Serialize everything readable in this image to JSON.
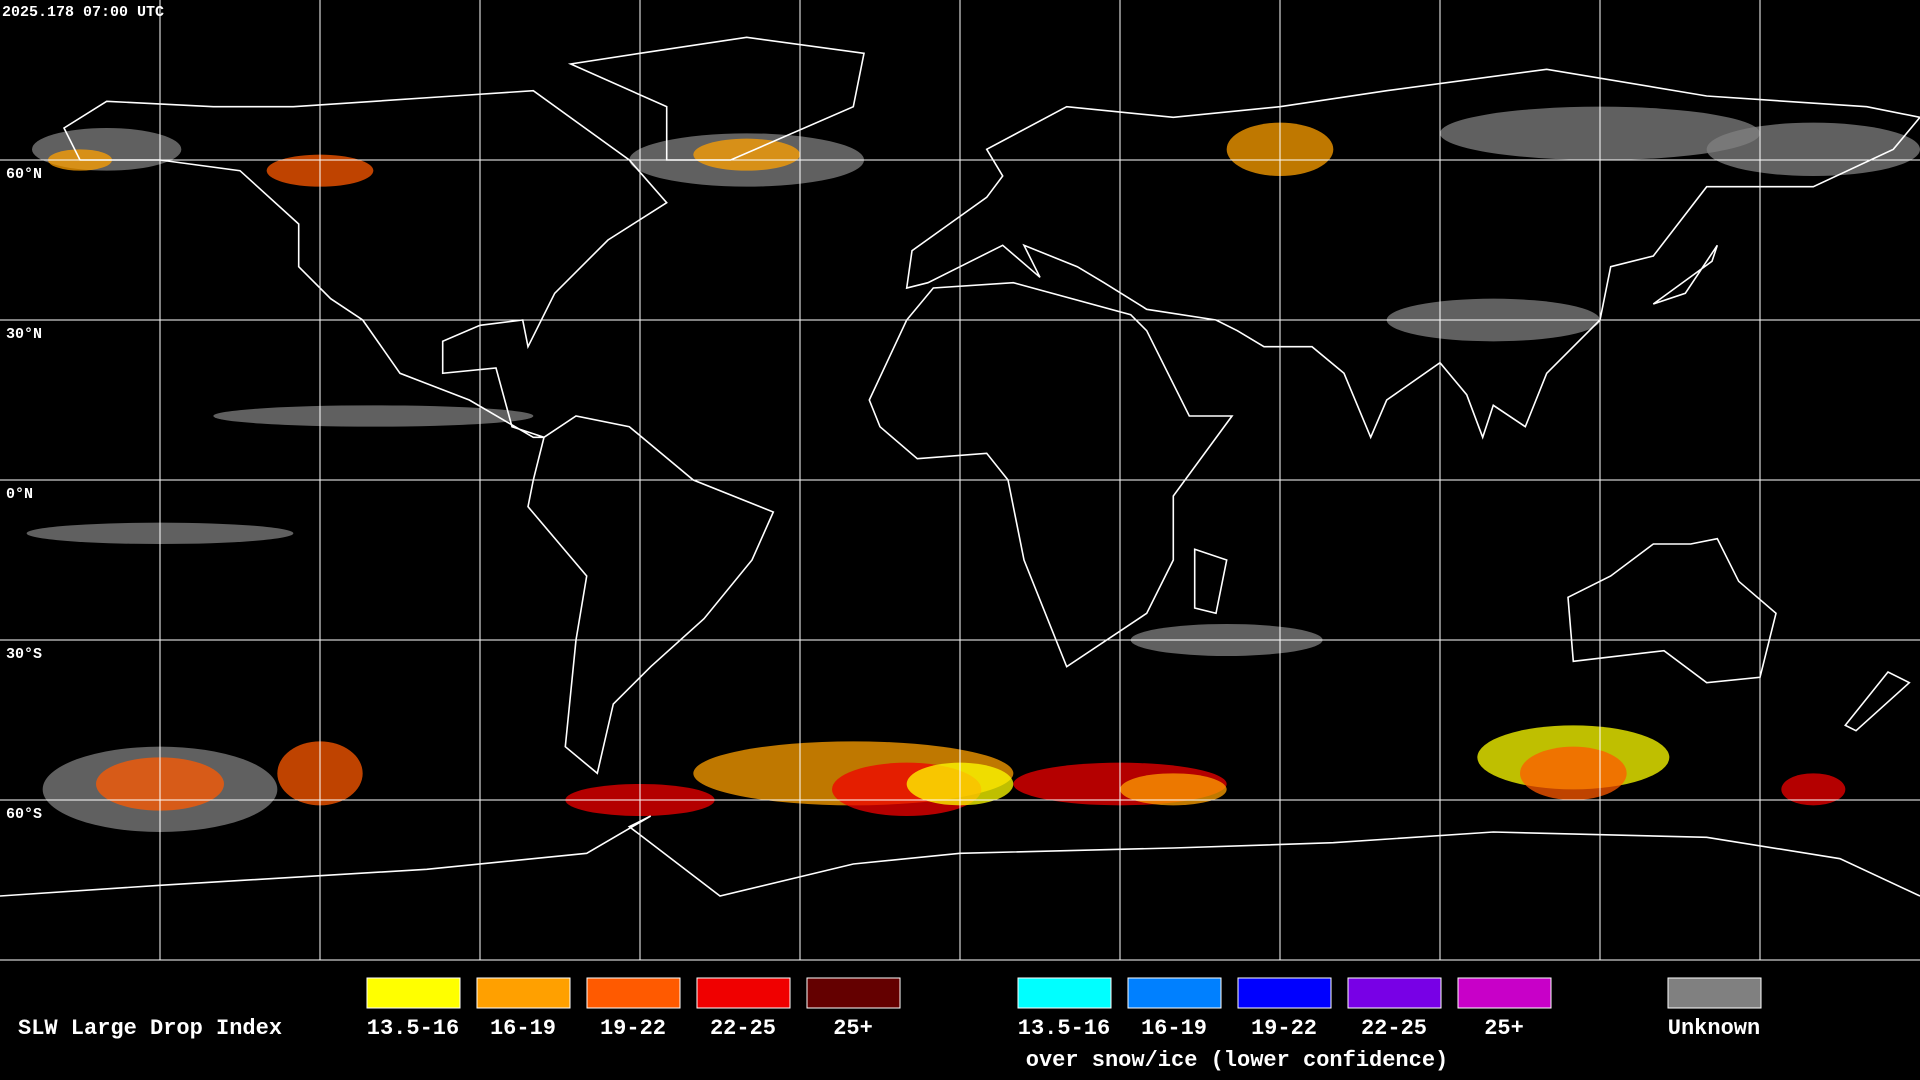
{
  "timestamp": "2025.178 07:00 UTC",
  "latitude_labels": [
    "60°N",
    "30°N",
    "0°N",
    "30°S",
    "60°S"
  ],
  "legend": {
    "title": "SLW Large Drop Index",
    "items": [
      {
        "label": "13.5-16",
        "color": "#ffff00"
      },
      {
        "label": "16-19",
        "color": "#ffa000"
      },
      {
        "label": "19-22",
        "color": "#ff5a00"
      },
      {
        "label": "22-25",
        "color": "#f00000"
      },
      {
        "label": "25+",
        "color": "#640000"
      }
    ],
    "snow_ice_items": [
      {
        "label": "13.5-16",
        "color": "#00ffff"
      },
      {
        "label": "16-19",
        "color": "#0080ff"
      },
      {
        "label": "19-22",
        "color": "#0000ff"
      },
      {
        "label": "22-25",
        "color": "#7800e6"
      },
      {
        "label": "25+",
        "color": "#c800c8"
      }
    ],
    "snow_ice_caption": "over snow/ice (lower confidence)",
    "unknown": {
      "label": "Unknown",
      "color": "#808080"
    }
  }
}
